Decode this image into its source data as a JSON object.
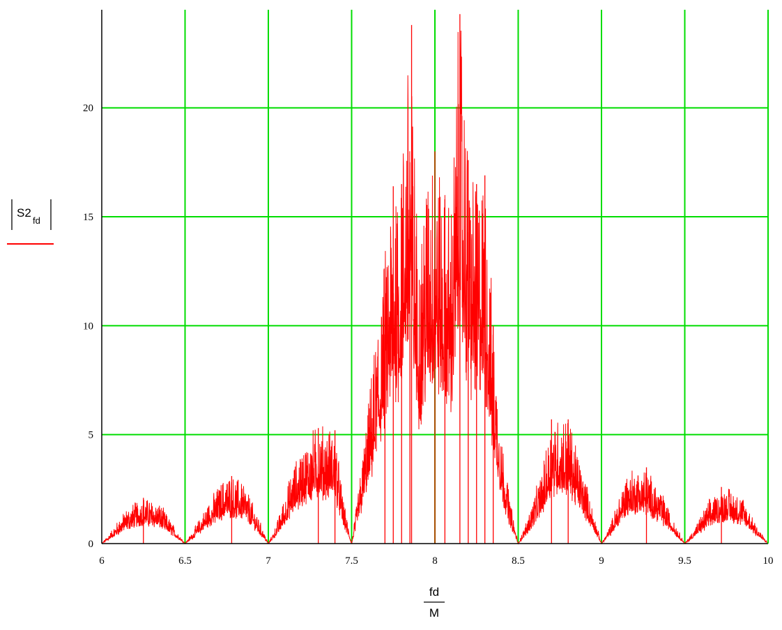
{
  "chart_data": {
    "type": "line",
    "title": "",
    "xlabel": {
      "numerator": "fd",
      "denominator": "M"
    },
    "ylabel": {
      "main": "S2",
      "subscript": "fd"
    },
    "xlim": [
      6,
      10
    ],
    "ylim": [
      0,
      24.5
    ],
    "xticks": [
      "6",
      "6.5",
      "7",
      "7.5",
      "8",
      "8.5",
      "9",
      "9.5",
      "10"
    ],
    "yticks": [
      "0",
      "5",
      "10",
      "15",
      "20"
    ],
    "grid": true,
    "grid_color": "#00dd00",
    "line_color": "#ff0000",
    "series": [
      {
        "name": "",
        "envelope_points": [
          [
            6.0,
            0
          ],
          [
            6.05,
            0.5
          ],
          [
            6.15,
            1.6
          ],
          [
            6.25,
            2.1
          ],
          [
            6.35,
            1.8
          ],
          [
            6.45,
            0.6
          ],
          [
            6.5,
            0
          ],
          [
            6.55,
            0.6
          ],
          [
            6.65,
            2.0
          ],
          [
            6.75,
            3.1
          ],
          [
            6.85,
            2.8
          ],
          [
            6.95,
            1.0
          ],
          [
            7.0,
            0
          ],
          [
            7.05,
            0.9
          ],
          [
            7.15,
            3.5
          ],
          [
            7.25,
            4.9
          ],
          [
            7.3,
            5.3
          ],
          [
            7.4,
            5.1
          ],
          [
            7.45,
            2.0
          ],
          [
            7.5,
            0
          ],
          [
            7.55,
            3.0
          ],
          [
            7.65,
            9.5
          ],
          [
            7.75,
            16.5
          ],
          [
            7.8,
            17.0
          ],
          [
            7.85,
            24.0
          ],
          [
            7.9,
            13.0
          ],
          [
            7.95,
            17.0
          ],
          [
            8.0,
            18.0
          ],
          [
            8.05,
            16.0
          ],
          [
            8.1,
            15.5
          ],
          [
            8.15,
            24.5
          ],
          [
            8.2,
            17.5
          ],
          [
            8.25,
            16.5
          ],
          [
            8.3,
            16.9
          ],
          [
            8.35,
            10.0
          ],
          [
            8.4,
            5.0
          ],
          [
            8.45,
            2.0
          ],
          [
            8.5,
            0
          ],
          [
            8.55,
            1.0
          ],
          [
            8.65,
            3.5
          ],
          [
            8.7,
            5.7
          ],
          [
            8.8,
            5.7
          ],
          [
            8.9,
            3.0
          ],
          [
            9.0,
            0
          ],
          [
            9.05,
            0.8
          ],
          [
            9.15,
            3.2
          ],
          [
            9.25,
            3.5
          ],
          [
            9.35,
            2.5
          ],
          [
            9.45,
            0.8
          ],
          [
            9.5,
            0
          ],
          [
            9.55,
            0.6
          ],
          [
            9.65,
            2.0
          ],
          [
            9.75,
            2.6
          ],
          [
            9.85,
            2.1
          ],
          [
            9.95,
            0.6
          ],
          [
            10.0,
            0
          ]
        ],
        "spikes": [
          [
            7.86,
            23.8
          ],
          [
            8.15,
            24.3
          ],
          [
            8.0,
            18.0
          ],
          [
            7.85,
            17.5
          ],
          [
            8.2,
            17.6
          ],
          [
            8.3,
            16.9
          ],
          [
            7.75,
            16.4
          ],
          [
            7.8,
            16.5
          ],
          [
            8.25,
            16.5
          ],
          [
            8.06,
            15.8
          ],
          [
            8.35,
            10.0
          ],
          [
            7.7,
            9.6
          ],
          [
            7.3,
            5.3
          ],
          [
            7.4,
            5.2
          ],
          [
            8.7,
            5.7
          ],
          [
            8.8,
            5.7
          ],
          [
            6.78,
            3.1
          ],
          [
            9.27,
            3.5
          ],
          [
            9.72,
            2.6
          ],
          [
            6.25,
            2.1
          ]
        ]
      }
    ]
  }
}
